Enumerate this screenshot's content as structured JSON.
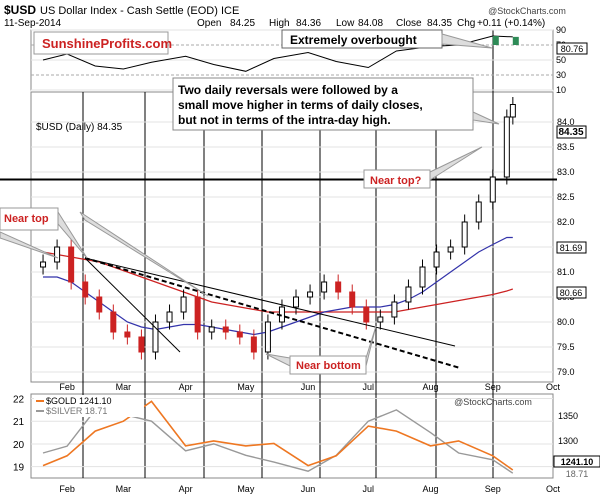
{
  "header": {
    "symbol": "$USD",
    "name": "US Dollar Index - Cash Settle (EOD) ICE",
    "date": "11-Sep-2014",
    "stockcharts_credit": "@StockCharts.com",
    "ohlc": {
      "open_label": "Open",
      "open": "84.25",
      "high_label": "High",
      "high": "84.36",
      "low_label": "Low",
      "low": "84.08",
      "close_label": "Close",
      "close": "84.35",
      "chg_label": "Chg",
      "chg": "+0.11 (+0.14%)"
    }
  },
  "rsi_panel": {
    "ticks": [
      "90",
      "70",
      "50",
      "30",
      "10"
    ],
    "last_value": "80.76",
    "line_color": "#000000",
    "fill_color": "#2e8b57"
  },
  "price_panel": {
    "legend_label": "$USD (Daily) 84.35",
    "last_price": "84.35",
    "ma50_value": "81.69",
    "ma200_value": "80.66",
    "ma50_color": "#3333aa",
    "ma200_color": "#cc2222",
    "y_ticks": [
      "84.0",
      "83.5",
      "83.0",
      "82.5",
      "82.0",
      "81.5",
      "81.0",
      "80.5",
      "80.0",
      "79.5",
      "79.0"
    ],
    "x_ticks": [
      "Feb",
      "Mar",
      "Apr",
      "May",
      "Jun",
      "Jul",
      "Aug",
      "Sep",
      "Oct"
    ],
    "resistance_level": 82.85
  },
  "lower_panel": {
    "gold_label": "$GOLD 1241.10",
    "silver_label": "$SILVER 18.71",
    "gold_color": "#ee7722",
    "silver_color": "#999999",
    "left_ticks": [
      "22",
      "21",
      "20",
      "19"
    ],
    "right_ticks": [
      "1350",
      "1300"
    ],
    "gold_last": "1241.10",
    "silver_last": "18.71",
    "stockcharts_credit": "@StockCharts.com"
  },
  "annotations": {
    "brand": "SunshineProfits.com",
    "overbought": "Extremely overbought",
    "comment": [
      "Two daily reversals were followed by a",
      "small move higher in terms of daily closes,",
      "but not in terms of the intra-day high."
    ],
    "near_top_right": "Near top?",
    "near_top_left": "Near top",
    "near_bottom": "Near bottom"
  },
  "chart_data": [
    {
      "type": "line",
      "title": "RSI",
      "ylim": [
        10,
        90
      ],
      "x": [
        "2014-01-20",
        "2014-02-01",
        "2014-02-15",
        "2014-03-01",
        "2014-03-15",
        "2014-04-01",
        "2014-04-15",
        "2014-05-01",
        "2014-05-15",
        "2014-06-01",
        "2014-06-15",
        "2014-07-01",
        "2014-07-15",
        "2014-08-01",
        "2014-08-15",
        "2014-09-01",
        "2014-09-11"
      ],
      "series": [
        {
          "values": [
            50,
            58,
            42,
            38,
            47,
            55,
            44,
            35,
            52,
            60,
            48,
            40,
            62,
            68,
            70,
            82,
            80.76
          ]
        }
      ]
    },
    {
      "type": "candlestick",
      "title": "$USD (Daily) 84.35",
      "ylim": [
        78.8,
        84.6
      ],
      "x": [
        "2014-01-20",
        "2014-01-27",
        "2014-02-03",
        "2014-02-10",
        "2014-02-17",
        "2014-02-24",
        "2014-03-03",
        "2014-03-10",
        "2014-03-17",
        "2014-03-24",
        "2014-03-31",
        "2014-04-07",
        "2014-04-14",
        "2014-04-21",
        "2014-04-28",
        "2014-05-05",
        "2014-05-12",
        "2014-05-19",
        "2014-05-26",
        "2014-06-02",
        "2014-06-09",
        "2014-06-16",
        "2014-06-23",
        "2014-06-30",
        "2014-07-07",
        "2014-07-14",
        "2014-07-21",
        "2014-07-28",
        "2014-08-04",
        "2014-08-11",
        "2014-08-18",
        "2014-08-25",
        "2014-09-01",
        "2014-09-08",
        "2014-09-11"
      ],
      "series": [
        {
          "name": "$USD",
          "values": [
            81.2,
            81.5,
            80.8,
            80.5,
            80.2,
            79.8,
            79.7,
            79.4,
            80.0,
            80.2,
            80.5,
            79.8,
            79.9,
            79.8,
            79.7,
            79.4,
            80.0,
            80.3,
            80.5,
            80.6,
            80.8,
            80.6,
            80.3,
            80.0,
            80.1,
            80.4,
            80.7,
            81.1,
            81.4,
            81.5,
            82.0,
            82.4,
            82.9,
            84.1,
            84.35
          ]
        },
        {
          "name": "81.69",
          "values": [
            80.9,
            80.9,
            80.8,
            80.6,
            80.4,
            80.2,
            80.0,
            79.9,
            79.85,
            79.9,
            79.95,
            79.95,
            79.9,
            79.85,
            79.8,
            79.75,
            79.8,
            79.9,
            80.0,
            80.1,
            80.2,
            80.25,
            80.3,
            80.3,
            80.3,
            80.35,
            80.45,
            80.6,
            80.8,
            81.0,
            81.2,
            81.4,
            81.55,
            81.69,
            81.69
          ]
        },
        {
          "name": "80.66",
          "values": [
            81.4,
            81.35,
            81.3,
            81.25,
            81.2,
            81.1,
            81.0,
            80.9,
            80.8,
            80.7,
            80.6,
            80.5,
            80.4,
            80.35,
            80.3,
            80.25,
            80.2,
            80.2,
            80.2,
            80.2,
            80.2,
            80.2,
            80.2,
            80.2,
            80.2,
            80.2,
            80.25,
            80.3,
            80.35,
            80.4,
            80.45,
            80.5,
            80.55,
            80.62,
            80.66
          ]
        }
      ]
    },
    {
      "type": "line",
      "title": "$GOLD 1241.10 / $SILVER 18.71",
      "x": [
        "2014-01-20",
        "2014-02-01",
        "2014-02-15",
        "2014-03-01",
        "2014-03-15",
        "2014-04-01",
        "2014-04-15",
        "2014-05-01",
        "2014-05-15",
        "2014-06-01",
        "2014-06-15",
        "2014-07-01",
        "2014-07-15",
        "2014-08-01",
        "2014-08-15",
        "2014-09-01",
        "2014-09-11"
      ],
      "series": [
        {
          "name": "$GOLD",
          "values": [
            1250,
            1270,
            1320,
            1340,
            1380,
            1290,
            1300,
            1290,
            1295,
            1250,
            1270,
            1330,
            1320,
            1290,
            1300,
            1270,
            1241.1
          ]
        },
        {
          "name": "$SILVER",
          "values": [
            19.6,
            19.9,
            21.5,
            21.3,
            21.0,
            19.7,
            20.0,
            19.5,
            19.2,
            18.8,
            19.5,
            21.0,
            21.5,
            20.5,
            19.6,
            19.3,
            18.71
          ]
        }
      ]
    }
  ]
}
